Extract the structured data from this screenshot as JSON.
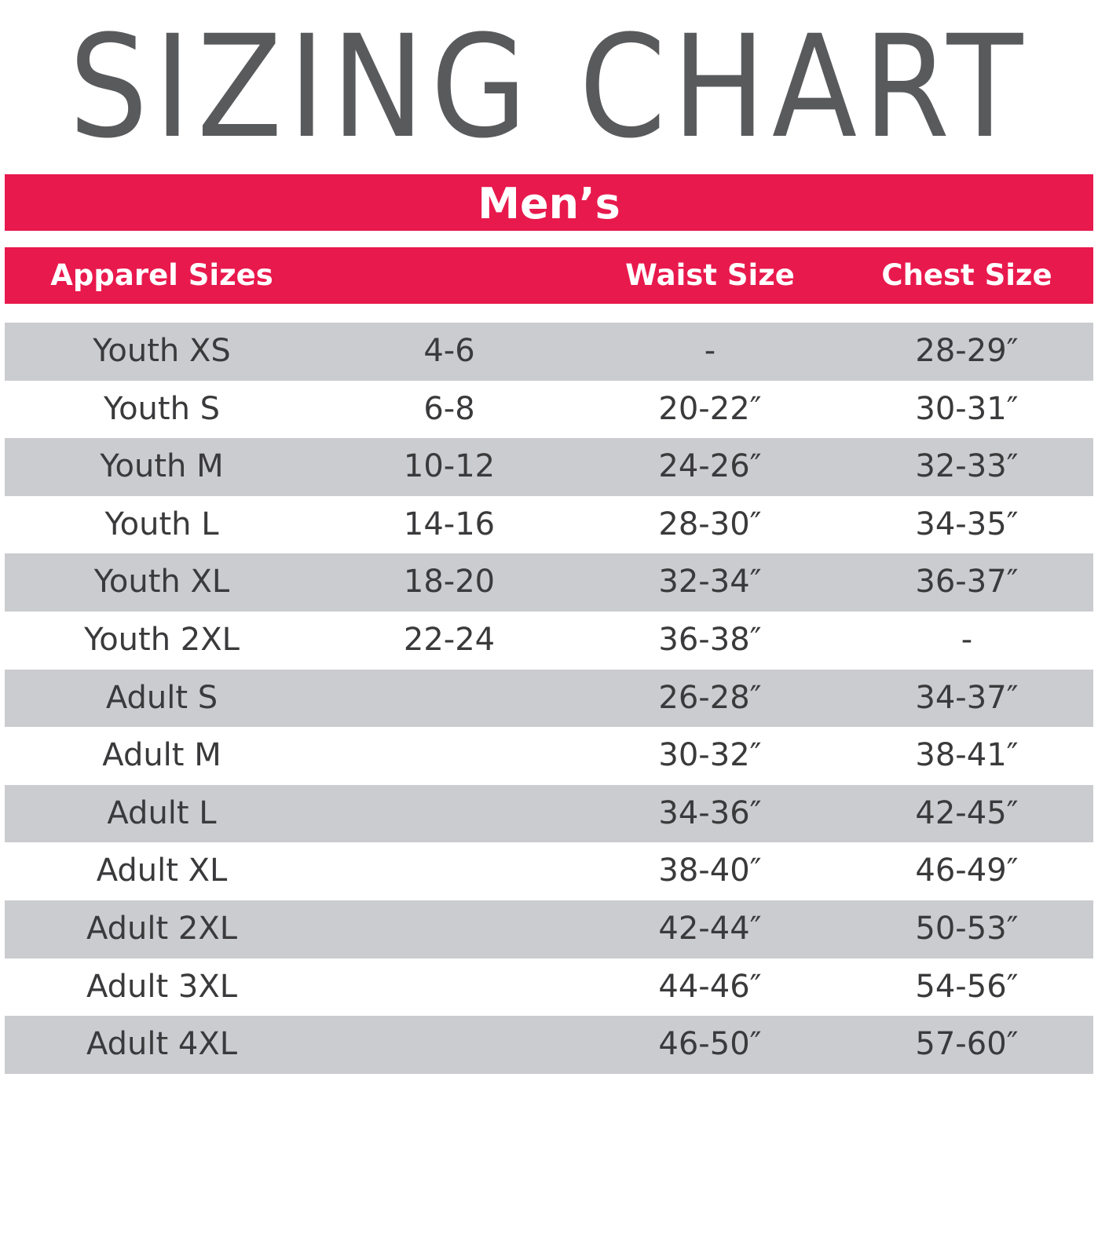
{
  "title": "SIZING CHART",
  "section": "Men’s",
  "columns": [
    "Apparel Sizes",
    "",
    "Waist Size",
    "Chest Size"
  ],
  "rows": [
    {
      "size": "Youth XS",
      "range": "4-6",
      "waist": "-",
      "chest": "28-29″"
    },
    {
      "size": "Youth S",
      "range": "6-8",
      "waist": "20-22″",
      "chest": "30-31″"
    },
    {
      "size": "Youth M",
      "range": "10-12",
      "waist": "24-26″",
      "chest": "32-33″"
    },
    {
      "size": "Youth L",
      "range": "14-16",
      "waist": "28-30″",
      "chest": "34-35″"
    },
    {
      "size": "Youth XL",
      "range": "18-20",
      "waist": "32-34″",
      "chest": "36-37″"
    },
    {
      "size": "Youth 2XL",
      "range": "22-24",
      "waist": "36-38″",
      "chest": "-"
    },
    {
      "size": "Adult S",
      "range": "",
      "waist": "26-28″",
      "chest": "34-37″"
    },
    {
      "size": "Adult M",
      "range": "",
      "waist": "30-32″",
      "chest": "38-41″"
    },
    {
      "size": "Adult L",
      "range": "",
      "waist": "34-36″",
      "chest": "42-45″"
    },
    {
      "size": "Adult XL",
      "range": "",
      "waist": "38-40″",
      "chest": "46-49″"
    },
    {
      "size": "Adult 2XL",
      "range": "",
      "waist": "42-44″",
      "chest": "50-53″"
    },
    {
      "size": "Adult 3XL",
      "range": "",
      "waist": "44-46″",
      "chest": "54-56″"
    },
    {
      "size": "Adult 4XL",
      "range": "",
      "waist": "46-50″",
      "chest": "57-60″"
    }
  ],
  "colors": {
    "title": "#595a5c",
    "band": "#e8194d",
    "row_shade": "#cbcccf",
    "row_text": "#3a3a3c"
  }
}
